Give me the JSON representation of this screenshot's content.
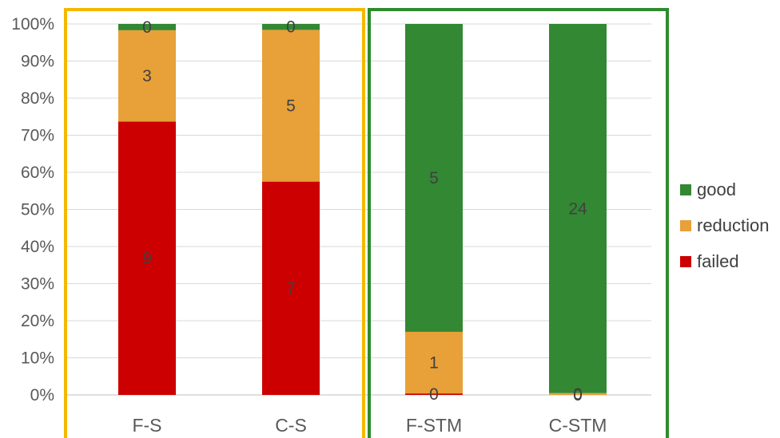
{
  "chart_data": {
    "type": "bar",
    "stacked": true,
    "percent": true,
    "title": "",
    "xlabel": "",
    "ylabel": "",
    "ylim": [
      0,
      100
    ],
    "yticks": [
      "0%",
      "10%",
      "20%",
      "30%",
      "40%",
      "50%",
      "60%",
      "70%",
      "80%",
      "90%",
      "100%"
    ],
    "grid": true,
    "legend_position": "right",
    "categories": [
      "F-S",
      "C-S",
      "F-STM",
      "C-STM"
    ],
    "series": [
      {
        "name": "failed",
        "color": "#cc0000",
        "counts": [
          9,
          7,
          0,
          0
        ],
        "percent": [
          73.7,
          57.5,
          0.4,
          0
        ],
        "labels": [
          "9",
          "7",
          "0",
          "0"
        ]
      },
      {
        "name": "reduction",
        "color": "#e8a038",
        "counts": [
          3,
          5,
          1,
          0
        ],
        "percent": [
          24.6,
          40.9,
          16.6,
          0.5
        ],
        "labels": [
          "3",
          "5",
          "1",
          "0"
        ]
      },
      {
        "name": "good",
        "color": "#338833",
        "counts": [
          0,
          0,
          5,
          24
        ],
        "percent": [
          1.7,
          1.6,
          83.0,
          99.5
        ],
        "labels": [
          "0",
          "0",
          "5",
          "24"
        ]
      }
    ],
    "legend_order": [
      "good",
      "reduction",
      "failed"
    ],
    "groups": [
      {
        "categories": [
          "F-S",
          "C-S"
        ],
        "frame_color": "#f5b800"
      },
      {
        "categories": [
          "F-STM",
          "C-STM"
        ],
        "frame_color": "#2e8b2e"
      }
    ]
  }
}
